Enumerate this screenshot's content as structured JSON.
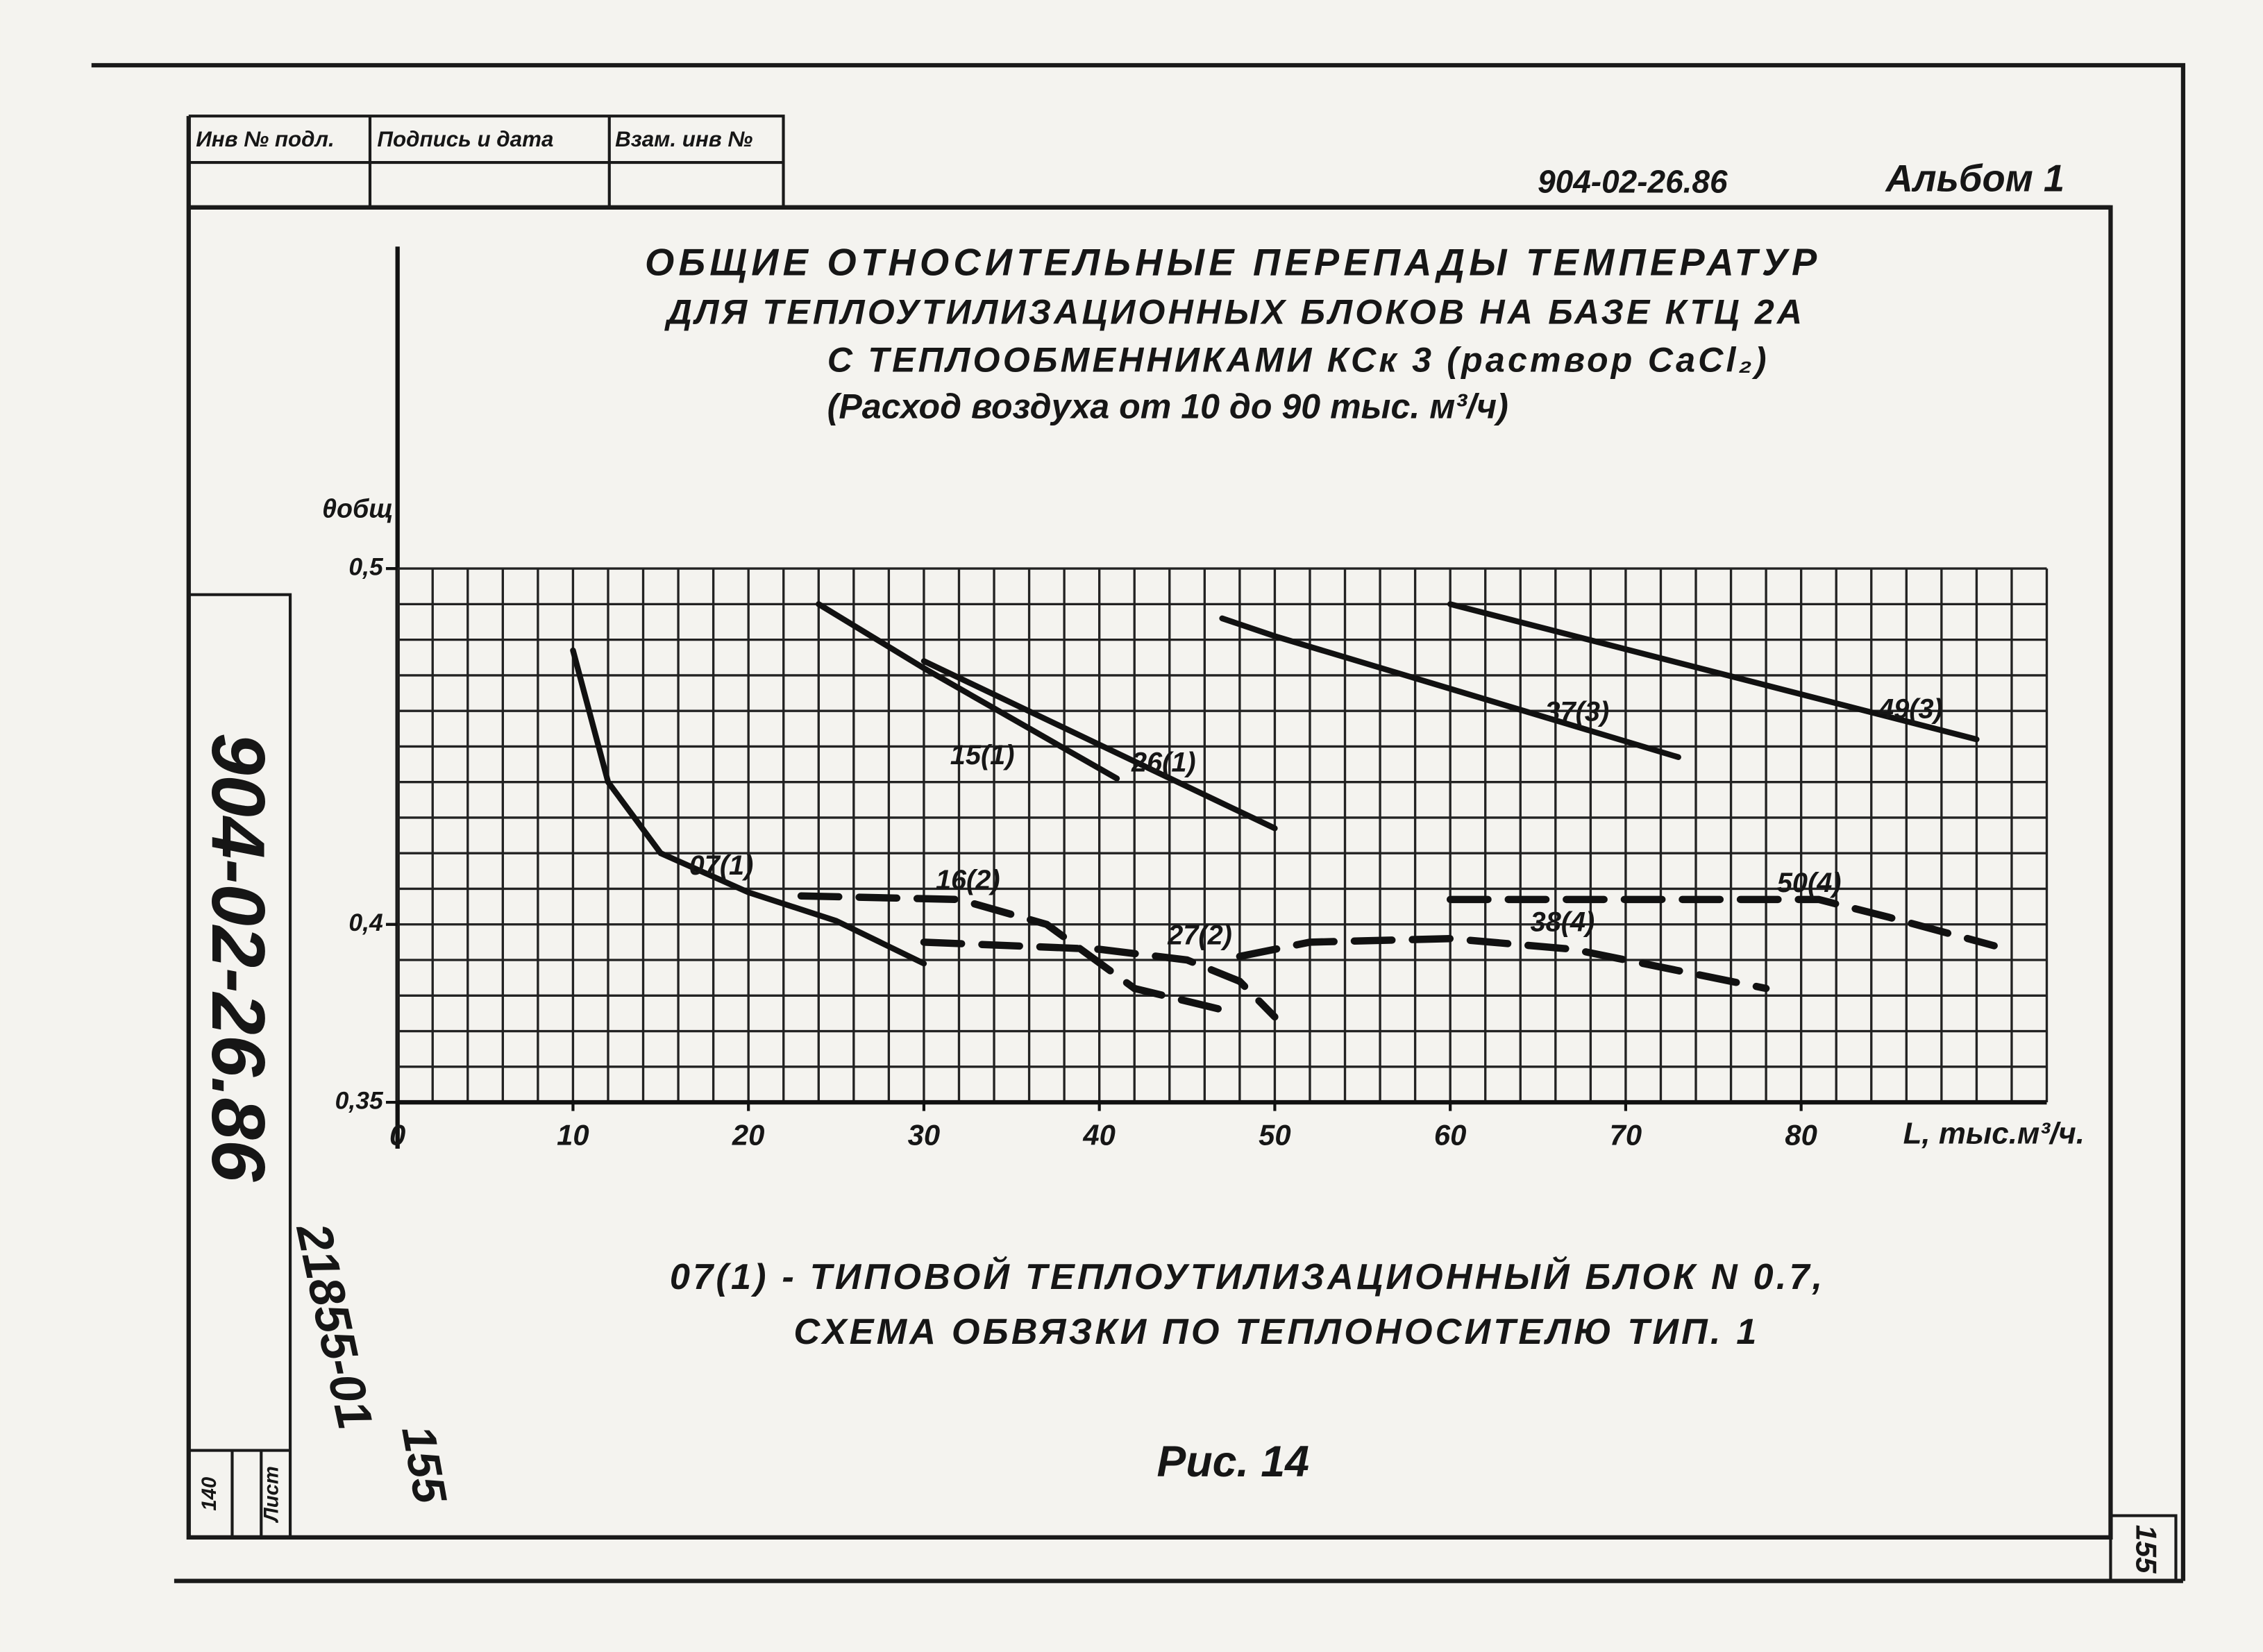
{
  "document": {
    "stamp": [
      "Инв № подл.",
      "Подпись и дата",
      "Взам. инв №"
    ],
    "code": "904-02-26.86",
    "album": "Альбом 1",
    "side_code": "904-02-26.86",
    "archive_no": "21855-01",
    "handwritten_page": "155",
    "sheet_label": "Лист",
    "sheet_no": "140",
    "page_no": "155",
    "footnote": [
      "07(1) - ТИПОВОЙ ТЕПЛОУТИЛИЗАЦИОННЫЙ БЛОК N 0.7,",
      "СХЕМА ОБВЯЗКИ ПО ТЕПЛОНОСИТЕЛЮ ТИП. 1"
    ],
    "figure": "Рис. 14"
  },
  "chart_data": {
    "type": "line",
    "title": [
      "ОБЩИЕ ОТНОСИТЕЛЬНЫЕ ПЕРЕПАДЫ ТЕМПЕРАТУР",
      "ДЛЯ ТЕПЛОУТИЛИЗАЦИОННЫХ БЛОКОВ НА БАЗЕ КТЦ 2А",
      "С ТЕПЛООБМЕННИКАМИ КСк 3 (раствор CaCl₂)",
      "(Расход воздуха от 10 до 90 тыс. м³/ч)"
    ],
    "y_label": "θобщ",
    "x_label": "L, тыс.м³/ч.",
    "xlim": [
      0,
      94
    ],
    "ylim": [
      0.35,
      0.5
    ],
    "xticks": [
      0,
      10,
      20,
      30,
      40,
      50,
      60,
      70,
      80
    ],
    "yticks": [
      {
        "value": 0.35,
        "label": "0,35"
      },
      {
        "value": 0.4,
        "label": "0,4"
      },
      {
        "value": 0.5,
        "label": "0,5"
      }
    ],
    "xgrid": [
      0,
      2,
      4,
      6,
      8,
      10,
      12,
      14,
      16,
      18,
      20,
      22,
      24,
      26,
      28,
      30,
      32,
      34,
      36,
      38,
      40,
      42,
      44,
      46,
      48,
      50,
      52,
      54,
      56,
      58,
      60,
      62,
      64,
      66,
      68,
      70,
      72,
      74,
      76,
      78,
      80,
      82,
      84,
      86,
      88,
      90,
      92,
      94
    ],
    "ygrid": [
      0.35,
      0.36,
      0.37,
      0.38,
      0.39,
      0.4,
      0.41,
      0.42,
      0.43,
      0.44,
      0.45,
      0.46,
      0.47,
      0.48,
      0.49,
      0.5
    ],
    "grid": true,
    "series": [
      {
        "name": "07(1)",
        "color": "#111111",
        "style": "solid",
        "x": [
          10,
          12,
          15,
          20,
          25,
          30
        ],
        "values": [
          0.477,
          0.44,
          0.42,
          0.409,
          0.401,
          0.389
        ]
      },
      {
        "name": "15(1)",
        "color": "#111111",
        "style": "solid",
        "x": [
          24,
          30,
          41
        ],
        "values": [
          0.49,
          0.472,
          0.441
        ]
      },
      {
        "name": "26(1)",
        "color": "#111111",
        "style": "solid",
        "x": [
          30,
          50
        ],
        "values": [
          0.474,
          0.427
        ]
      },
      {
        "name": "37(3)",
        "color": "#111111",
        "style": "solid",
        "x": [
          47,
          50,
          73
        ],
        "values": [
          0.486,
          0.481,
          0.447
        ]
      },
      {
        "name": "49(3)",
        "color": "#111111",
        "style": "solid",
        "x": [
          60,
          90
        ],
        "values": [
          0.49,
          0.452
        ]
      },
      {
        "name": "16(2)",
        "color": "#111111",
        "style": "dashed",
        "x": [
          23,
          32,
          37,
          42,
          47
        ],
        "values": [
          0.408,
          0.407,
          0.4,
          0.382,
          0.376
        ]
      },
      {
        "name": "27(2)",
        "color": "#111111",
        "style": "dashed",
        "x": [
          30,
          40,
          45,
          48,
          50
        ],
        "values": [
          0.395,
          0.393,
          0.39,
          0.384,
          0.374
        ]
      },
      {
        "name": "38(4)",
        "color": "#111111",
        "style": "dashed",
        "x": [
          48,
          52,
          60,
          67,
          78
        ],
        "values": [
          0.391,
          0.395,
          0.396,
          0.393,
          0.382
        ]
      },
      {
        "name": "50(4)",
        "color": "#111111",
        "style": "dashed",
        "x": [
          60,
          81,
          85,
          91
        ],
        "values": [
          0.407,
          0.407,
          0.402,
          0.394
        ]
      }
    ]
  }
}
